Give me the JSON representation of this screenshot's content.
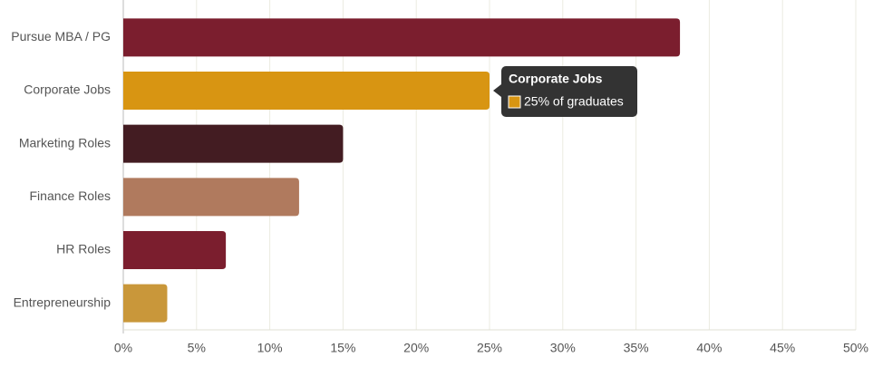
{
  "chart_data": {
    "type": "bar",
    "orientation": "horizontal",
    "categories": [
      "Pursue MBA / PG",
      "Corporate Jobs",
      "Marketing Roles",
      "Finance Roles",
      "HR Roles",
      "Entrepreneurship"
    ],
    "values": [
      38,
      25,
      15,
      12,
      7,
      3
    ],
    "colors": [
      "#7b1e2e",
      "#d89512",
      "#431c22",
      "#b07a5e",
      "#7b1e2e",
      "#c9973a"
    ],
    "xlim": [
      0,
      50
    ],
    "xticks": [
      {
        "value": 0,
        "label": "0%"
      },
      {
        "value": 5,
        "label": "5%"
      },
      {
        "value": 10,
        "label": "10%"
      },
      {
        "value": 15,
        "label": "15%"
      },
      {
        "value": 20,
        "label": "20%"
      },
      {
        "value": 25,
        "label": "25%"
      },
      {
        "value": 30,
        "label": "30%"
      },
      {
        "value": 35,
        "label": "35%"
      },
      {
        "value": 40,
        "label": "40%"
      },
      {
        "value": 45,
        "label": "45%"
      },
      {
        "value": 50,
        "label": "50%"
      }
    ],
    "grid": true,
    "tooltip": {
      "title": "Corporate Jobs",
      "label": "25% of graduates"
    }
  }
}
